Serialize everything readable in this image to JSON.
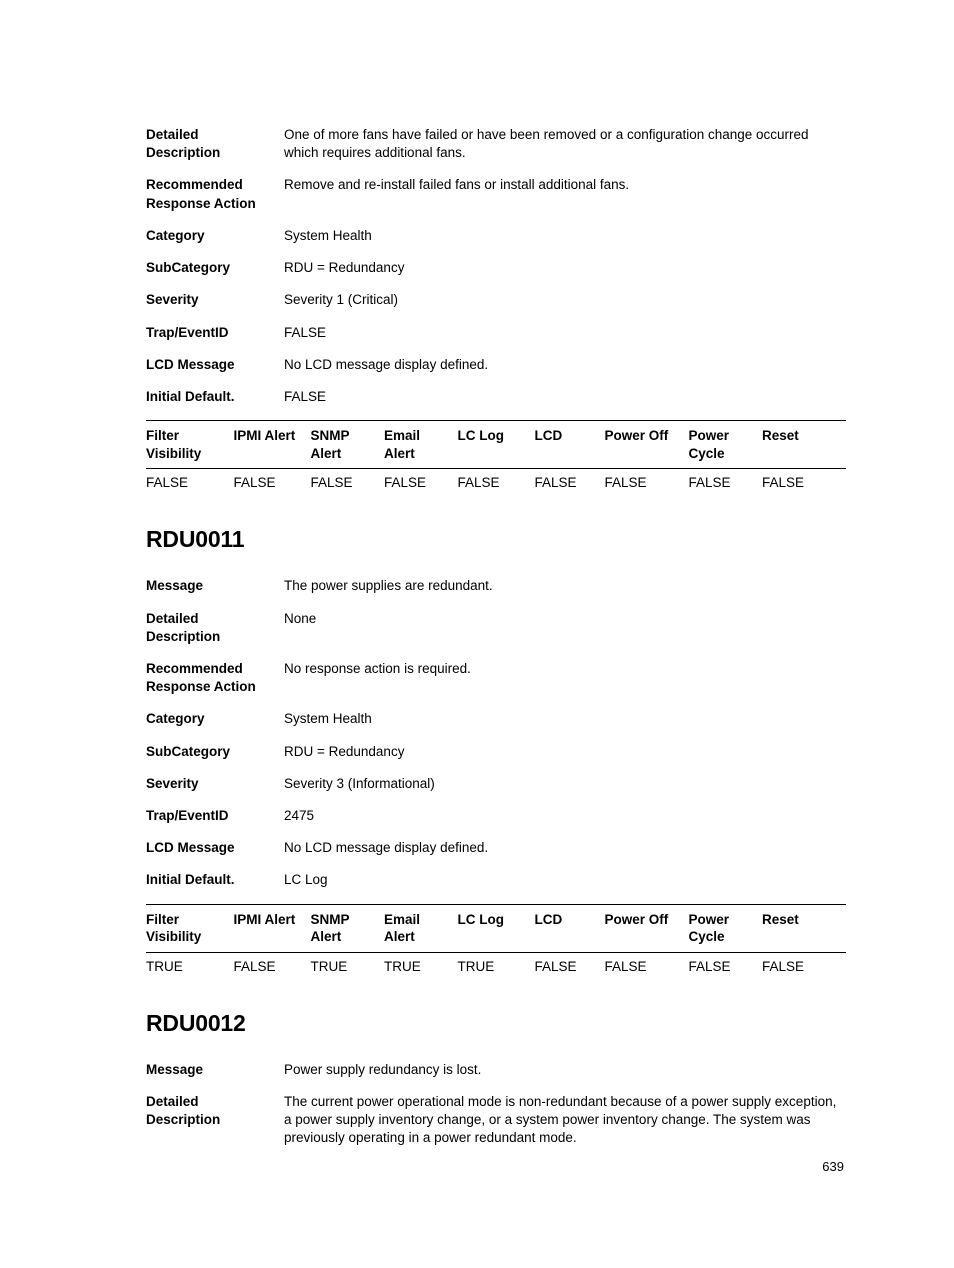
{
  "page_number": "639",
  "section0": {
    "fields": [
      {
        "label": "Detailed Description",
        "value": "One of more fans have failed or have been removed or a configuration change occurred which requires additional fans."
      },
      {
        "label": "Recommended Response Action",
        "value": "Remove and re-install failed fans or install additional fans."
      },
      {
        "label": "Category",
        "value": "System Health"
      },
      {
        "label": "SubCategory",
        "value": "RDU = Redundancy"
      },
      {
        "label": "Severity",
        "value": "Severity 1 (Critical)"
      },
      {
        "label": "Trap/EventID",
        "value": "FALSE"
      },
      {
        "label": "LCD Message",
        "value": "No LCD message display defined."
      },
      {
        "label": "Initial Default.",
        "value": "FALSE"
      }
    ],
    "table": {
      "columns": [
        "Filter Visibility",
        "IPMI Alert",
        "SNMP Alert",
        "Email Alert",
        "LC Log",
        "LCD",
        "Power Off",
        "Power Cycle",
        "Reset"
      ],
      "rows": [
        [
          "FALSE",
          "FALSE",
          "FALSE",
          "FALSE",
          "FALSE",
          "FALSE",
          "FALSE",
          "FALSE",
          "FALSE"
        ]
      ]
    }
  },
  "section1": {
    "heading": "RDU0011",
    "fields": [
      {
        "label": "Message",
        "value": "The power supplies are redundant."
      },
      {
        "label": "Detailed Description",
        "value": "None"
      },
      {
        "label": "Recommended Response Action",
        "value": "No response action is required."
      },
      {
        "label": "Category",
        "value": "System Health"
      },
      {
        "label": "SubCategory",
        "value": "RDU = Redundancy"
      },
      {
        "label": "Severity",
        "value": "Severity 3 (Informational)"
      },
      {
        "label": "Trap/EventID",
        "value": "2475"
      },
      {
        "label": "LCD Message",
        "value": "No LCD message display defined."
      },
      {
        "label": "Initial Default.",
        "value": "LC Log"
      }
    ],
    "table": {
      "columns": [
        "Filter Visibility",
        "IPMI Alert",
        "SNMP Alert",
        "Email Alert",
        "LC Log",
        "LCD",
        "Power Off",
        "Power Cycle",
        "Reset"
      ],
      "rows": [
        [
          "TRUE",
          "FALSE",
          "TRUE",
          "TRUE",
          "TRUE",
          "FALSE",
          "FALSE",
          "FALSE",
          "FALSE"
        ]
      ]
    }
  },
  "section2": {
    "heading": "RDU0012",
    "fields": [
      {
        "label": "Message",
        "value": "Power supply redundancy is lost."
      },
      {
        "label": "Detailed Description",
        "value": "The current power operational mode is non-redundant because of a power supply exception, a power supply inventory change, or a system power inventory change. The system was previously operating in a power redundant mode."
      }
    ]
  },
  "col_widths": [
    "12.5%",
    "11%",
    "10.5%",
    "10.5%",
    "11%",
    "10%",
    "12%",
    "10.5%",
    "12%"
  ]
}
